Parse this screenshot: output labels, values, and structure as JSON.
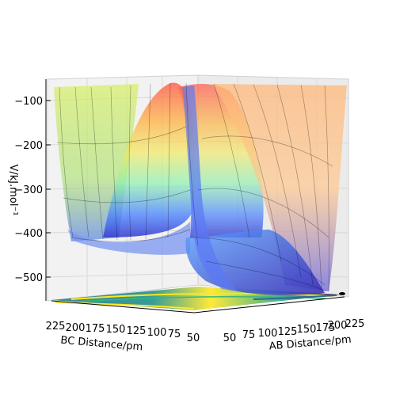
{
  "chart_data": {
    "type": "surface3d",
    "title": "",
    "xlabel": "AB Distance/pm",
    "ylabel": "BC Distance/pm",
    "zlabel": "V/kJ.mol⁻¹",
    "x_ticks": [
      "50",
      "75",
      "100",
      "125",
      "150",
      "175",
      "200",
      "225"
    ],
    "y_ticks": [
      "225",
      "200",
      "175",
      "150",
      "125",
      "100",
      "75",
      "50"
    ],
    "z_ticks": [
      "−100",
      "−200",
      "−300",
      "−400",
      "−500"
    ],
    "xlim": [
      50,
      230
    ],
    "ylim": [
      50,
      230
    ],
    "zlim": [
      -560,
      -70
    ],
    "colormap": "jet",
    "floor_contour_colormap": "viridis",
    "grid": true
  }
}
